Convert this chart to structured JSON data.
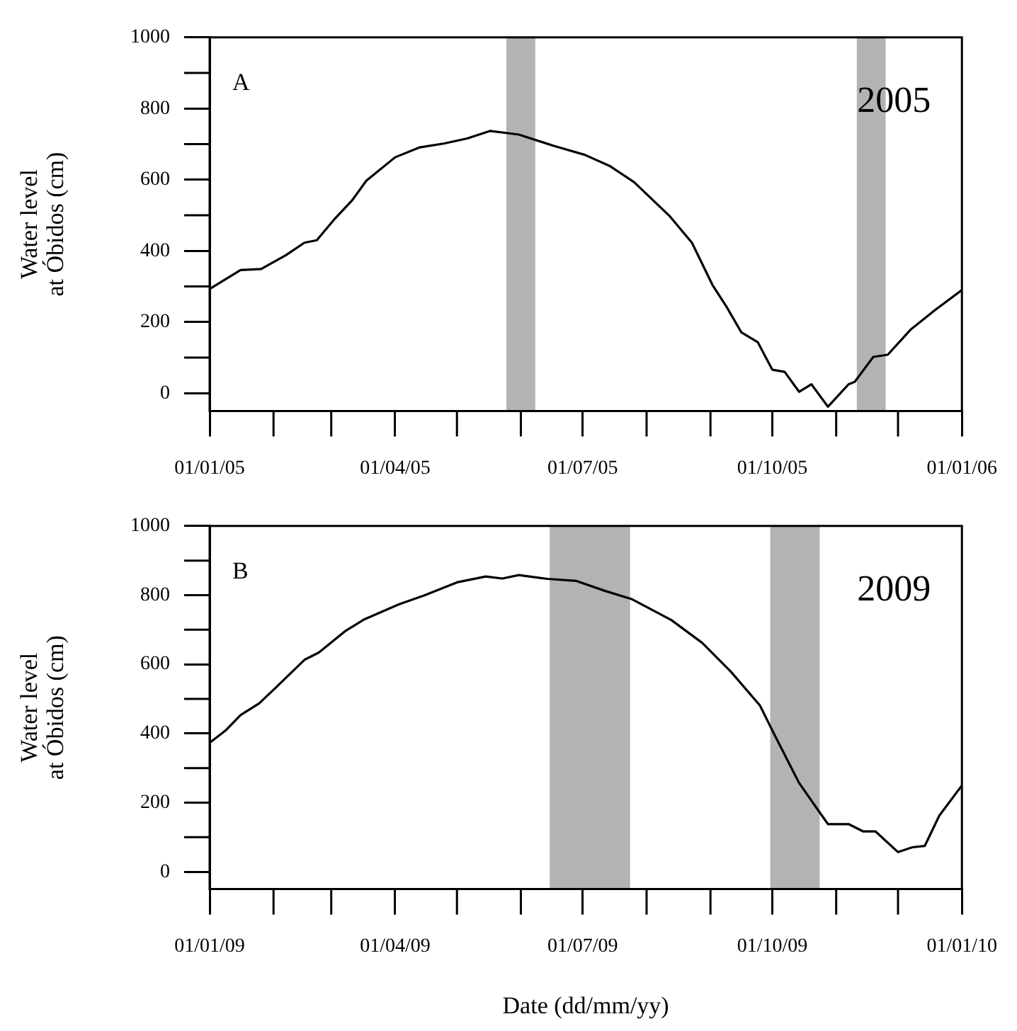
{
  "chart_data": [
    {
      "type": "line",
      "ylabel": "Water level\nat Óbidos (cm)",
      "annotations": [
        "A",
        "2005"
      ],
      "x": [
        "2005-01-01",
        "2005-01-16",
        "2005-01-26",
        "2005-02-07",
        "2005-02-16",
        "2005-02-22",
        "2005-03-03",
        "2005-03-11",
        "2005-03-18",
        "2005-04-01",
        "2005-04-13",
        "2005-04-25",
        "2005-05-06",
        "2005-05-17",
        "2005-05-31",
        "2005-06-17",
        "2005-07-02",
        "2005-07-14",
        "2005-07-26",
        "2005-08-12",
        "2005-08-23",
        "2005-09-02",
        "2005-09-09",
        "2005-09-16",
        "2005-09-24",
        "2005-10-01",
        "2005-10-07",
        "2005-10-14",
        "2005-10-20",
        "2005-10-28",
        "2005-11-07",
        "2005-11-10",
        "2005-11-19",
        "2005-11-26",
        "2005-12-07",
        "2005-12-19",
        "2006-01-01"
      ],
      "series": [
        {
          "color": "#000000",
          "values": [
            293,
            346,
            349,
            388,
            423,
            430,
            492,
            541,
            597,
            663,
            691,
            702,
            716,
            737,
            727,
            695,
            670,
            639,
            593,
            499,
            423,
            304,
            241,
            171,
            143,
            66,
            60,
            4,
            25,
            -38,
            25,
            32,
            102,
            108,
            178,
            234,
            290
          ]
        }
      ],
      "xlim": [
        "2005-01-01",
        "2006-01-01"
      ],
      "ylim": [
        -50,
        1000
      ],
      "xticks": [
        {
          "value": "2005-01-01",
          "label": "01/01/05"
        },
        {
          "value": "2005-04-01",
          "label": "01/04/05"
        },
        {
          "value": "2005-07-01",
          "label": "01/07/05"
        },
        {
          "value": "2005-10-01",
          "label": "01/10/05"
        },
        {
          "value": "2006-01-01",
          "label": "01/01/06"
        }
      ],
      "yticks": [
        0,
        200,
        400,
        600,
        800,
        1000
      ],
      "bands": [
        {
          "axis": "x",
          "from": "2005-05-25",
          "to": "2005-06-08",
          "color": "#b3b3b3"
        },
        {
          "axis": "x",
          "from": "2005-11-11",
          "to": "2005-11-25",
          "color": "#b3b3b3"
        }
      ],
      "grid": false
    },
    {
      "type": "line",
      "ylabel": "Water level\nat Óbidos (cm)",
      "xlabel": "Date (dd/mm/yy)",
      "annotations": [
        "B",
        "2009"
      ],
      "x": [
        "2009-01-01",
        "2009-01-09",
        "2009-01-16",
        "2009-01-25",
        "2009-02-02",
        "2009-02-16",
        "2009-02-23",
        "2009-03-08",
        "2009-03-17",
        "2009-04-03",
        "2009-04-15",
        "2009-05-01",
        "2009-05-15",
        "2009-05-23",
        "2009-05-31",
        "2009-06-14",
        "2009-06-28",
        "2009-07-12",
        "2009-07-25",
        "2009-08-13",
        "2009-08-28",
        "2009-09-11",
        "2009-09-25",
        "2009-10-02",
        "2009-10-14",
        "2009-10-23",
        "2009-10-28",
        "2009-11-07",
        "2009-11-14",
        "2009-11-20",
        "2009-12-01",
        "2009-12-08",
        "2009-12-14",
        "2009-12-21",
        "2010-01-01"
      ],
      "series": [
        {
          "color": "#000000",
          "values": [
            373,
            410,
            453,
            487,
            532,
            613,
            634,
            697,
            730,
            774,
            799,
            837,
            854,
            848,
            858,
            847,
            841,
            812,
            788,
            728,
            662,
            578,
            481,
            397,
            257,
            180,
            138,
            138,
            117,
            117,
            57,
            71,
            75,
            162,
            250
          ]
        }
      ],
      "xlim": [
        "2009-01-01",
        "2010-01-01"
      ],
      "ylim": [
        -50,
        1000
      ],
      "xticks": [
        {
          "value": "2009-01-01",
          "label": "01/01/09"
        },
        {
          "value": "2009-04-01",
          "label": "01/04/09"
        },
        {
          "value": "2009-07-01",
          "label": "01/07/09"
        },
        {
          "value": "2009-10-01",
          "label": "01/10/09"
        },
        {
          "value": "2010-01-01",
          "label": "01/01/10"
        }
      ],
      "yticks": [
        0,
        200,
        400,
        600,
        800,
        1000
      ],
      "bands": [
        {
          "axis": "x",
          "from": "2009-06-15",
          "to": "2009-07-24",
          "color": "#b3b3b3"
        },
        {
          "axis": "x",
          "from": "2009-09-30",
          "to": "2009-10-24",
          "color": "#b3b3b3"
        }
      ],
      "grid": false
    }
  ]
}
